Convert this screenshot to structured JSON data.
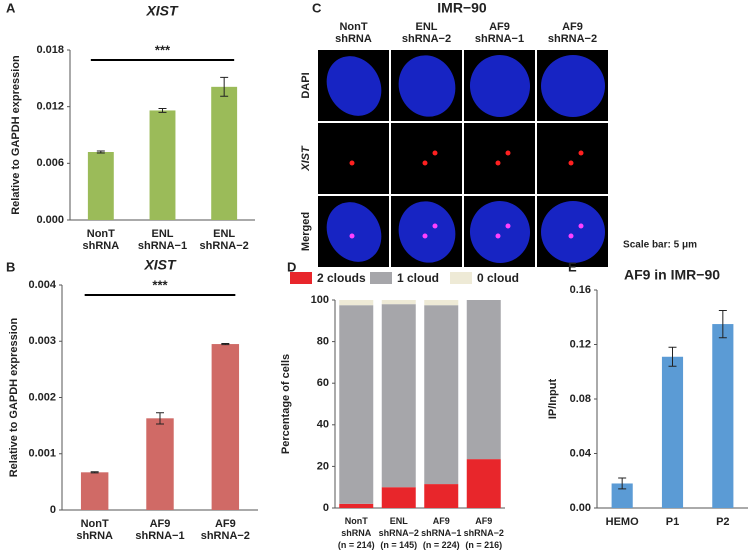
{
  "chart_data": [
    {
      "type": "bar",
      "panel": "A",
      "title": "XIST",
      "ylabel": "Relative to GAPDH expression",
      "categories": [
        "NonT\nshRNA",
        "ENL\nshRNA−1",
        "ENL\nshRNA−2"
      ],
      "values": [
        0.0072,
        0.0116,
        0.0141
      ],
      "errors": [
        0.0001,
        0.0002,
        0.001
      ],
      "color": "#9bbb59",
      "annotation": "***",
      "ylim": [
        0,
        0.018
      ],
      "yticks": [
        {
          "value": 0,
          "label": "0.000"
        },
        0.006,
        0.012,
        0.018
      ]
    },
    {
      "type": "bar",
      "panel": "B",
      "title": "XIST",
      "ylabel": "Relative to GAPDH expression",
      "categories": [
        "NonT\nshRNA",
        "AF9\nshRNA−1",
        "AF9\nshRNA−2"
      ],
      "values": [
        0.00067,
        0.00163,
        0.00295
      ],
      "errors": [
        1e-05,
        0.0001,
        1e-05
      ],
      "color": "#d06a66",
      "annotation": "***",
      "ylim": [
        0,
        0.004
      ],
      "yticks": [
        0,
        0.001,
        0.002,
        0.003,
        0.004
      ]
    },
    {
      "type": "stacked",
      "panel": "D",
      "ylabel": "Percentage of cells",
      "categories": [
        "NonT\nshRNA\n(n = 214)",
        "ENL\nshRNA−2\n(n = 145)",
        "AF9\nshRNA−1\n(n = 224)",
        "AF9\nshRNA−2\n(n = 216)"
      ],
      "series": [
        {
          "name": "2 clouds",
          "color": "#e8262b",
          "values": [
            2,
            10,
            11.5,
            23.5
          ]
        },
        {
          "name": "1 cloud",
          "color": "#a6a6aa",
          "values": [
            95.5,
            88,
            86,
            76.5
          ]
        },
        {
          "name": "0 cloud",
          "color": "#eeead6",
          "values": [
            2.5,
            2,
            2.5,
            0
          ]
        }
      ],
      "ylim": [
        0,
        100
      ],
      "yticks": [
        0,
        20,
        40,
        60,
        80,
        100
      ]
    },
    {
      "type": "bar",
      "panel": "E",
      "title": "AF9 in IMR−90",
      "ylabel": "IP/Input",
      "categories": [
        "HEMO",
        "P1",
        "P2"
      ],
      "values": [
        0.018,
        0.111,
        0.135
      ],
      "errors": [
        0.004,
        0.007,
        0.01
      ],
      "color": "#5b9bd5",
      "ylim": [
        0,
        0.16
      ],
      "yticks": [
        {
          "value": 0,
          "label": "0.00"
        },
        0.04,
        0.08,
        0.12,
        0.16
      ]
    }
  ],
  "image_panel": {
    "panel": "C",
    "title": "IMR−90",
    "columns": [
      "NonT\nshRNA",
      "ENL\nshRNA−2",
      "AF9\nshRNA−1",
      "AF9\nshRNA−2"
    ],
    "rows": [
      "DAPI",
      "XIST",
      "Merged"
    ],
    "scale_bar": "Scale bar: 5 μm"
  }
}
